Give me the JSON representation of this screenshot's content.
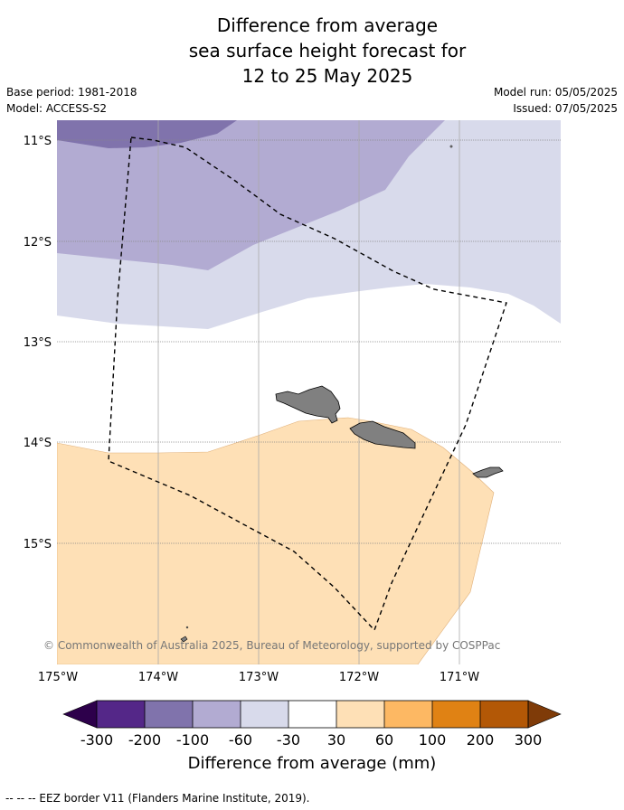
{
  "title": {
    "line1": "Difference from average",
    "line2": "sea surface height forecast for",
    "line3": "12 to 25 May 2025"
  },
  "meta": {
    "base_period": "Base period: 1981-2018",
    "model": "Model: ACCESS-S2",
    "model_run": "Model run: 05/05/2025",
    "issued": "Issued: 07/05/2025"
  },
  "map": {
    "lat_labels": [
      "11°S",
      "12°S",
      "13°S",
      "14°S",
      "15°S"
    ],
    "lon_labels": [
      "175°W",
      "174°W",
      "173°W",
      "172°W",
      "171°W"
    ],
    "copyright": "© Commonwealth of Australia 2025, Bureau of Meteorology, supported by COSPPac",
    "land_color": "#808080",
    "border_style": "dashed"
  },
  "colorbar": {
    "title": "Difference from average (mm)",
    "ticks": [
      "-300",
      "-200",
      "-100",
      "-60",
      "-30",
      "30",
      "60",
      "100",
      "200",
      "300"
    ],
    "colors": [
      "#2d004b",
      "#542788",
      "#8073ac",
      "#b2abd2",
      "#d8daeb",
      "#ffffff",
      "#fee0b6",
      "#fdb863",
      "#e08214",
      "#b35806",
      "#7f3b08"
    ]
  },
  "footer": {
    "legend": "--  --  -- EEZ border V11 (Flanders Marine Institute, 2019)."
  }
}
